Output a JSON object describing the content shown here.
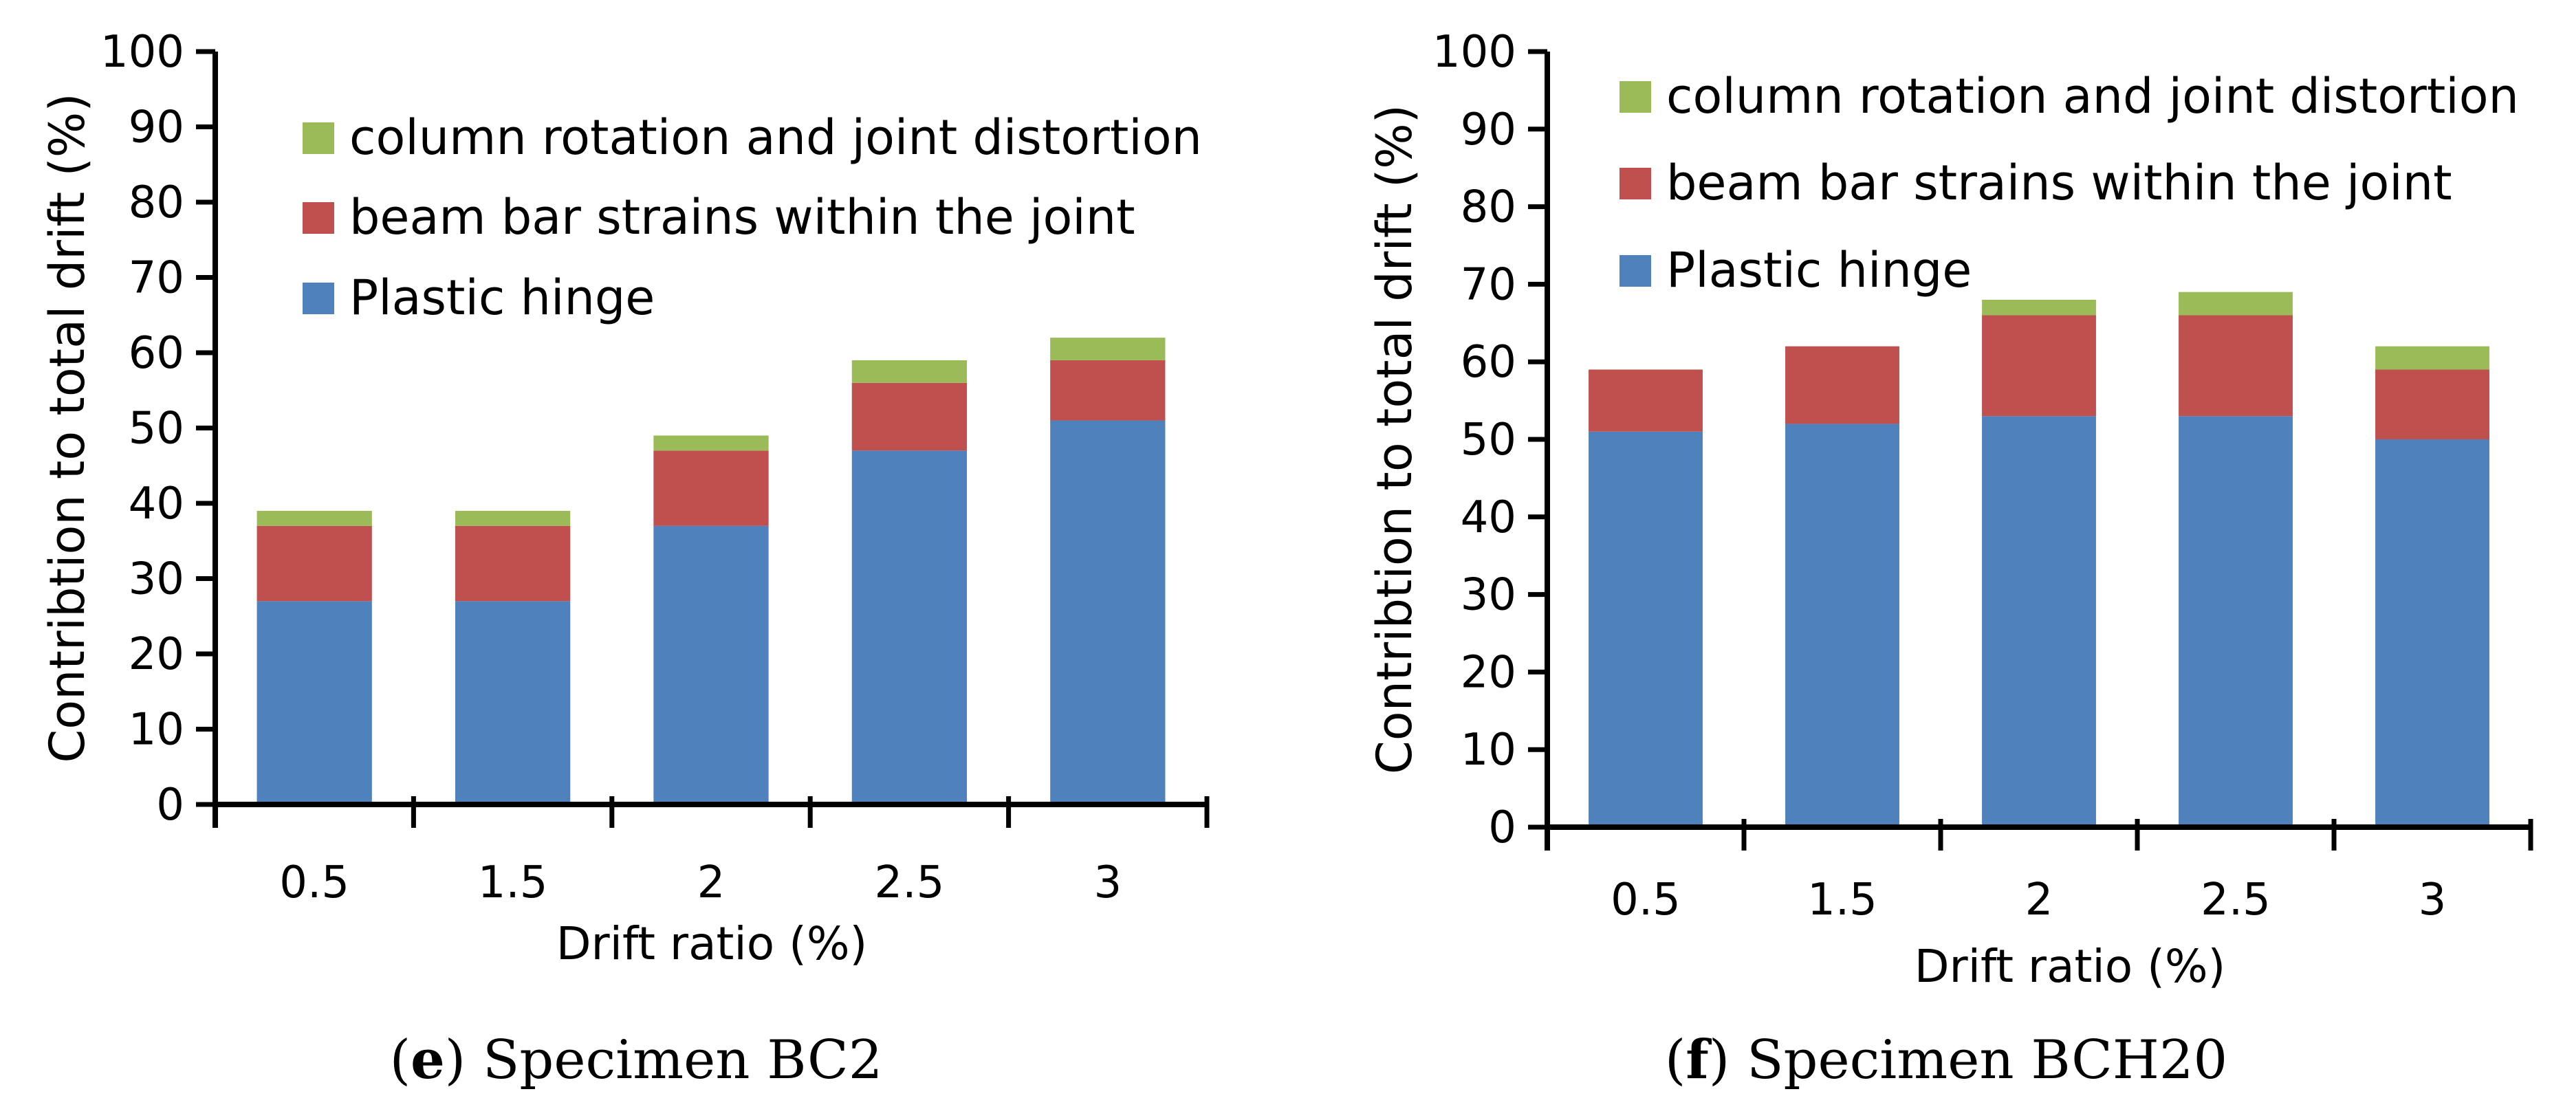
{
  "chart_data": [
    {
      "type": "bar",
      "stacked": true,
      "caption_letter": "e",
      "caption_text": ") Specimen BC2",
      "categories": [
        "0.5",
        "1.5",
        "2",
        "2.5",
        "3"
      ],
      "series": [
        {
          "name": "Plastic hinge",
          "values": [
            27,
            27,
            37,
            47,
            51
          ]
        },
        {
          "name": "beam bar strains within the joint",
          "values": [
            10,
            10,
            10,
            9,
            8
          ]
        },
        {
          "name": "column rotation and joint distortion",
          "values": [
            2,
            2,
            2,
            3,
            3
          ]
        }
      ],
      "xlabel": "Drift ratio (%)",
      "ylabel": "Contribtion to total drift (%)",
      "ylim": [
        0,
        100
      ],
      "yticks": [
        0,
        10,
        20,
        30,
        40,
        50,
        60,
        70,
        80,
        90,
        100
      ],
      "legend_position": "top-left inside"
    },
    {
      "type": "bar",
      "stacked": true,
      "caption_letter": "f",
      "caption_text": ") Specimen BCH20",
      "categories": [
        "0.5",
        "1.5",
        "2",
        "2.5",
        "3"
      ],
      "series": [
        {
          "name": "Plastic hinge",
          "values": [
            51,
            52,
            53,
            53,
            50
          ]
        },
        {
          "name": "beam bar strains within the joint",
          "values": [
            8,
            10,
            13,
            13,
            9
          ]
        },
        {
          "name": "column rotation and joint distortion",
          "values": [
            0,
            0,
            2,
            3,
            3
          ]
        }
      ],
      "xlabel": "Drift ratio (%)",
      "ylabel": "Contribtion to total drift (%)",
      "ylim": [
        0,
        100
      ],
      "yticks": [
        0,
        10,
        20,
        30,
        40,
        50,
        60,
        70,
        80,
        90,
        100
      ],
      "legend_position": "top-left inside"
    }
  ],
  "colors": {
    "Plastic hinge": "#4F81BD",
    "beam bar strains within the joint": "#C0504D",
    "column rotation and joint distortion": "#9BBB59",
    "axis": "#000000"
  }
}
